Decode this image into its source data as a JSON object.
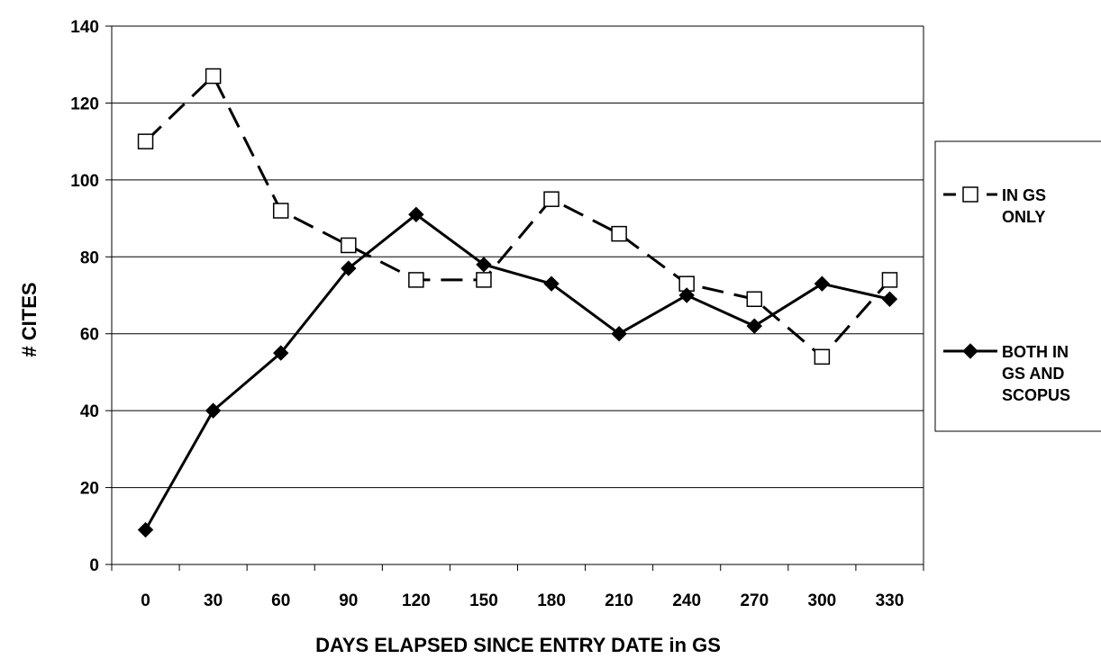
{
  "chart_data": {
    "type": "line",
    "xlabel": "DAYS ELAPSED SINCE ENTRY DATE in GS",
    "ylabel": "# CITES",
    "x": [
      0,
      30,
      60,
      90,
      120,
      150,
      180,
      210,
      240,
      270,
      300,
      330
    ],
    "x_tick_labels": [
      "0",
      "30",
      "60",
      "90",
      "120",
      "150",
      "180",
      "210",
      "240",
      "270",
      "300",
      "330"
    ],
    "ylim": [
      0,
      140
    ],
    "y_ticks": [
      0,
      20,
      40,
      60,
      80,
      100,
      120,
      140
    ],
    "y_tick_labels": [
      "0",
      "20",
      "40",
      "60",
      "80",
      "100",
      "120",
      "140"
    ],
    "grid": "horizontal",
    "legend_position": "right",
    "series": [
      {
        "name": "IN GS ONLY",
        "legend_lines": [
          "IN GS",
          "ONLY"
        ],
        "marker": "open-square",
        "line_style": "dashed",
        "color": "#000000",
        "values": [
          110,
          127,
          92,
          83,
          74,
          74,
          95,
          86,
          73,
          69,
          54,
          74
        ]
      },
      {
        "name": "BOTH IN GS AND SCOPUS",
        "legend_lines": [
          "BOTH IN",
          "GS AND",
          "SCOPUS"
        ],
        "marker": "filled-diamond",
        "line_style": "solid",
        "color": "#000000",
        "values": [
          9,
          40,
          55,
          77,
          91,
          78,
          73,
          60,
          70,
          62,
          73,
          69
        ]
      }
    ]
  }
}
